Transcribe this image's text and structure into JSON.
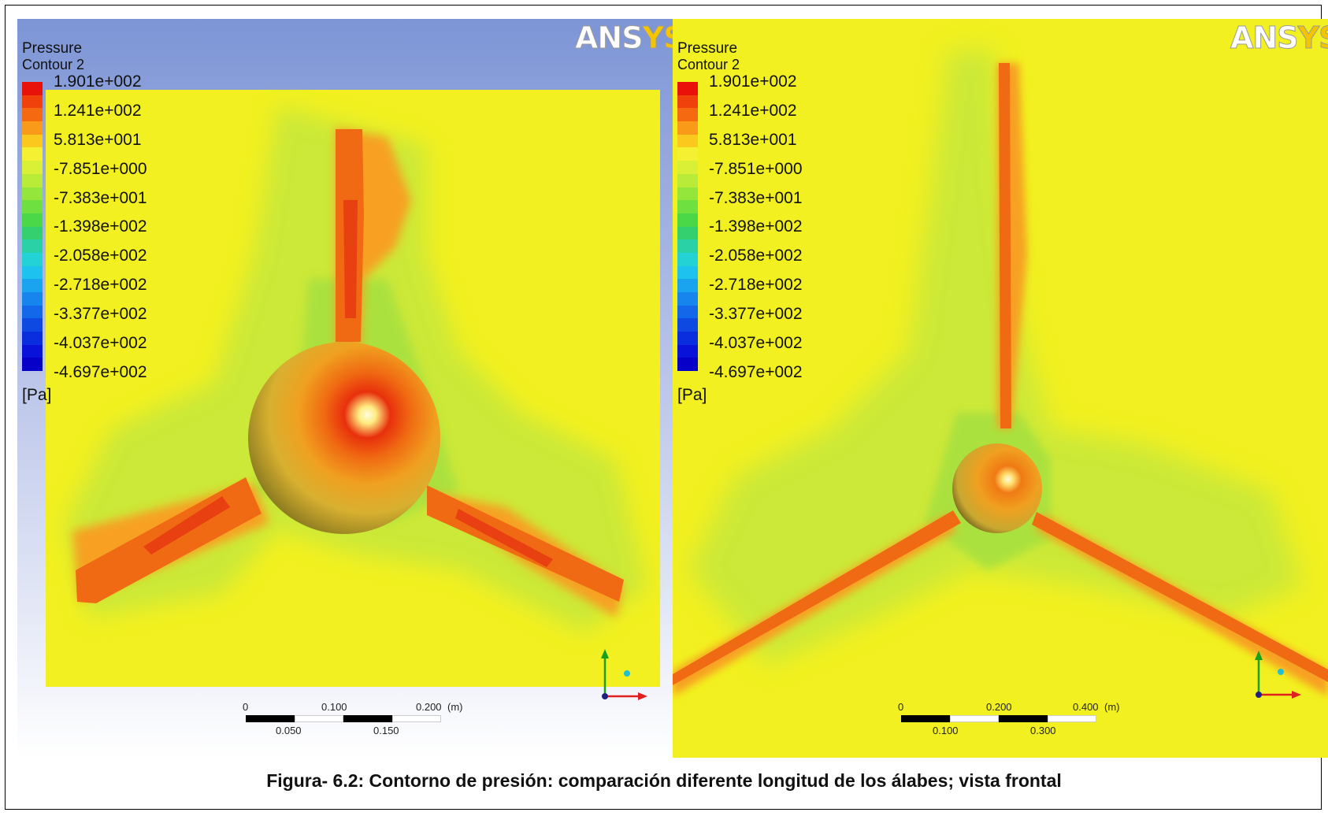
{
  "left_view": {
    "title": "Pressure",
    "subtitle": "Contour 2",
    "legend_labels": [
      "1.901e+002",
      "1.241e+002",
      "5.813e+001",
      "-7.851e+000",
      "-7.383e+001",
      "-1.398e+002",
      "-2.058e+002",
      "-2.718e+002",
      "-3.377e+002",
      "-4.037e+002",
      "-4.697e+002"
    ],
    "unit": "[Pa]",
    "logo": {
      "part1": "ANS",
      "part2": "YS"
    },
    "scale": {
      "top_labels": [
        "0",
        "0.100",
        "0.200"
      ],
      "unit": "(m)",
      "bottom_labels": [
        "0.050",
        "0.150"
      ]
    }
  },
  "right_view": {
    "title": "Pressure",
    "subtitle": "Contour 2",
    "legend_labels": [
      "1.901e+002",
      "1.241e+002",
      "5.813e+001",
      "-7.851e+000",
      "-7.383e+001",
      "-1.398e+002",
      "-2.058e+002",
      "-2.718e+002",
      "-3.377e+002",
      "-4.037e+002",
      "-4.697e+002"
    ],
    "unit": "[Pa]",
    "logo": {
      "part1": "ANS",
      "part2": "YS"
    },
    "scale": {
      "top_labels": [
        "0",
        "0.200",
        "0.400"
      ],
      "unit": "(m)",
      "bottom_labels": [
        "0.100",
        "0.300"
      ]
    }
  },
  "legend_colors": [
    "#e8120a",
    "#f0400c",
    "#f56a10",
    "#f99a18",
    "#fbc81e",
    "#f4f032",
    "#d8f035",
    "#b8ec38",
    "#94e63c",
    "#6ee040",
    "#4ad848",
    "#34d070",
    "#2ad0a6",
    "#22d2d4",
    "#1ec2ee",
    "#1aa4f0",
    "#1686ee",
    "#1268e8",
    "#0e4ae2",
    "#0a2ede",
    "#0812d8",
    "#0600c8"
  ],
  "caption": "Figura- 6.2: Contorno de presión: comparación diferente longitud de los álabes; vista frontal"
}
